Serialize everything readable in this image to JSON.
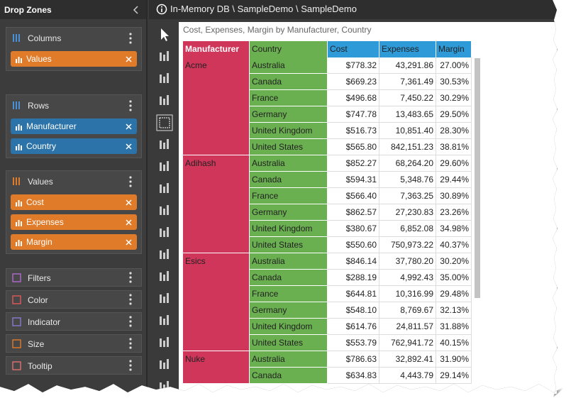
{
  "sidebar": {
    "title": "Drop Zones",
    "zones": [
      {
        "title": "Columns",
        "kind": "columns",
        "items": [
          "Values"
        ]
      },
      {
        "title": "Rows",
        "kind": "rows",
        "items": [
          "Manufacturer",
          "Country"
        ]
      },
      {
        "title": "Values",
        "kind": "values",
        "items": [
          "Cost",
          "Expenses",
          "Margin"
        ]
      }
    ],
    "options": [
      "Filters",
      "Color",
      "Indicator",
      "Size",
      "Tooltip"
    ]
  },
  "breadcrumb": "In-Memory DB \\ SampleDemo \\ SampleDemo",
  "grid": {
    "title": "Cost, Expenses, Margin by Manufacturer, Country",
    "columns": [
      "Manufacturer",
      "Country",
      "Cost",
      "Expenses",
      "Margin"
    ],
    "groups": [
      {
        "manufacturer": "Acme",
        "rows": [
          [
            "Australia",
            "$778.32",
            "43,291.86",
            "27.00%"
          ],
          [
            "Canada",
            "$669.23",
            "7,361.49",
            "30.53%"
          ],
          [
            "France",
            "$496.68",
            "7,450.22",
            "30.29%"
          ],
          [
            "Germany",
            "$747.78",
            "13,483.65",
            "29.50%"
          ],
          [
            "United Kingdom",
            "$516.73",
            "10,851.40",
            "28.30%"
          ],
          [
            "United States",
            "$565.80",
            "842,151.23",
            "38.81%"
          ]
        ]
      },
      {
        "manufacturer": "Adihash",
        "rows": [
          [
            "Australia",
            "$852.27",
            "68,264.20",
            "29.60%"
          ],
          [
            "Canada",
            "$594.31",
            "5,348.76",
            "29.44%"
          ],
          [
            "France",
            "$566.40",
            "7,363.25",
            "30.89%"
          ],
          [
            "Germany",
            "$862.57",
            "27,230.83",
            "23.26%"
          ],
          [
            "United Kingdom",
            "$380.67",
            "6,852.08",
            "34.98%"
          ],
          [
            "United States",
            "$550.60",
            "750,973.22",
            "40.37%"
          ]
        ]
      },
      {
        "manufacturer": "Esics",
        "rows": [
          [
            "Australia",
            "$846.14",
            "37,780.20",
            "30.20%"
          ],
          [
            "Canada",
            "$288.19",
            "4,992.43",
            "35.00%"
          ],
          [
            "France",
            "$644.81",
            "10,316.99",
            "29.48%"
          ],
          [
            "Germany",
            "$548.10",
            "8,769.67",
            "32.13%"
          ],
          [
            "United Kingdom",
            "$614.76",
            "24,811.57",
            "31.88%"
          ],
          [
            "United States",
            "$553.79",
            "762,941.72",
            "40.15%"
          ]
        ]
      },
      {
        "manufacturer": "Nuke",
        "rows": [
          [
            "Australia",
            "$786.63",
            "32,892.41",
            "31.90%"
          ],
          [
            "Canada",
            "$634.83",
            "4,443.79",
            "29.14%"
          ]
        ]
      }
    ]
  }
}
